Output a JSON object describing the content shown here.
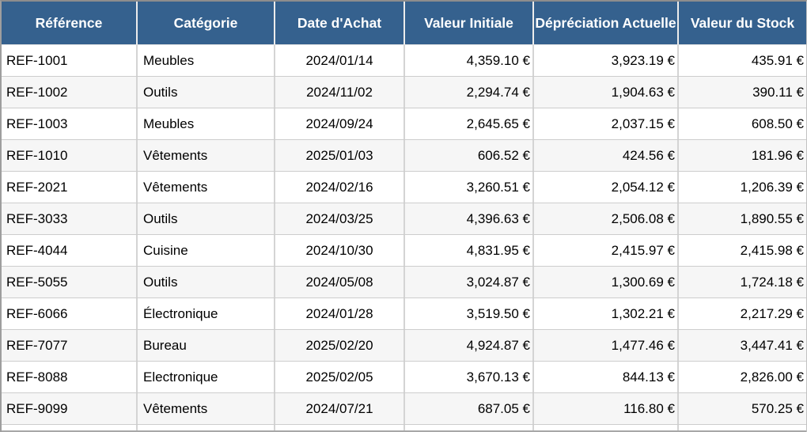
{
  "colors": {
    "header_bg": "#35618E",
    "header_text": "#FFFFFF",
    "row_alt_bg": "#F6F6F6",
    "grid_line": "#D4D4D4"
  },
  "table": {
    "columns": [
      {
        "key": "reference",
        "label": "Référence",
        "align": "left"
      },
      {
        "key": "categorie",
        "label": "Catégorie",
        "align": "left"
      },
      {
        "key": "date_achat",
        "label": "Date d'Achat",
        "align": "center"
      },
      {
        "key": "valeur_initiale",
        "label": "Valeur Initiale",
        "align": "right"
      },
      {
        "key": "depreciation_actuelle",
        "label": "Dépréciation Actuelle",
        "align": "right"
      },
      {
        "key": "valeur_stock",
        "label": "Valeur du Stock",
        "align": "right"
      }
    ],
    "rows": [
      {
        "reference": "REF-1001",
        "categorie": "Meubles",
        "date_achat": "2024/01/14",
        "valeur_initiale": "4,359.10 €",
        "depreciation_actuelle": "3,923.19 €",
        "valeur_stock": "435.91 €"
      },
      {
        "reference": "REF-1002",
        "categorie": "Outils",
        "date_achat": "2024/11/02",
        "valeur_initiale": "2,294.74 €",
        "depreciation_actuelle": "1,904.63 €",
        "valeur_stock": "390.11 €"
      },
      {
        "reference": "REF-1003",
        "categorie": "Meubles",
        "date_achat": "2024/09/24",
        "valeur_initiale": "2,645.65 €",
        "depreciation_actuelle": "2,037.15 €",
        "valeur_stock": "608.50 €"
      },
      {
        "reference": "REF-1010",
        "categorie": "Vêtements",
        "date_achat": "2025/01/03",
        "valeur_initiale": "606.52 €",
        "depreciation_actuelle": "424.56 €",
        "valeur_stock": "181.96 €"
      },
      {
        "reference": "REF-2021",
        "categorie": "Vêtements",
        "date_achat": "2024/02/16",
        "valeur_initiale": "3,260.51 €",
        "depreciation_actuelle": "2,054.12 €",
        "valeur_stock": "1,206.39 €"
      },
      {
        "reference": "REF-3033",
        "categorie": "Outils",
        "date_achat": "2024/03/25",
        "valeur_initiale": "4,396.63 €",
        "depreciation_actuelle": "2,506.08 €",
        "valeur_stock": "1,890.55 €"
      },
      {
        "reference": "REF-4044",
        "categorie": "Cuisine",
        "date_achat": "2024/10/30",
        "valeur_initiale": "4,831.95 €",
        "depreciation_actuelle": "2,415.97 €",
        "valeur_stock": "2,415.98 €"
      },
      {
        "reference": "REF-5055",
        "categorie": "Outils",
        "date_achat": "2024/05/08",
        "valeur_initiale": "3,024.87 €",
        "depreciation_actuelle": "1,300.69 €",
        "valeur_stock": "1,724.18 €"
      },
      {
        "reference": "REF-6066",
        "categorie": "Électronique",
        "date_achat": "2024/01/28",
        "valeur_initiale": "3,519.50 €",
        "depreciation_actuelle": "1,302.21 €",
        "valeur_stock": "2,217.29 €"
      },
      {
        "reference": "REF-7077",
        "categorie": "Bureau",
        "date_achat": "2025/02/20",
        "valeur_initiale": "4,924.87 €",
        "depreciation_actuelle": "1,477.46 €",
        "valeur_stock": "3,447.41 €"
      },
      {
        "reference": "REF-8088",
        "categorie": "Electronique",
        "date_achat": "2025/02/05",
        "valeur_initiale": "3,670.13 €",
        "depreciation_actuelle": "844.13 €",
        "valeur_stock": "2,826.00 €"
      },
      {
        "reference": "REF-9099",
        "categorie": "Vêtements",
        "date_achat": "2024/07/21",
        "valeur_initiale": "687.05 €",
        "depreciation_actuelle": "116.80 €",
        "valeur_stock": "570.25 €"
      }
    ]
  }
}
